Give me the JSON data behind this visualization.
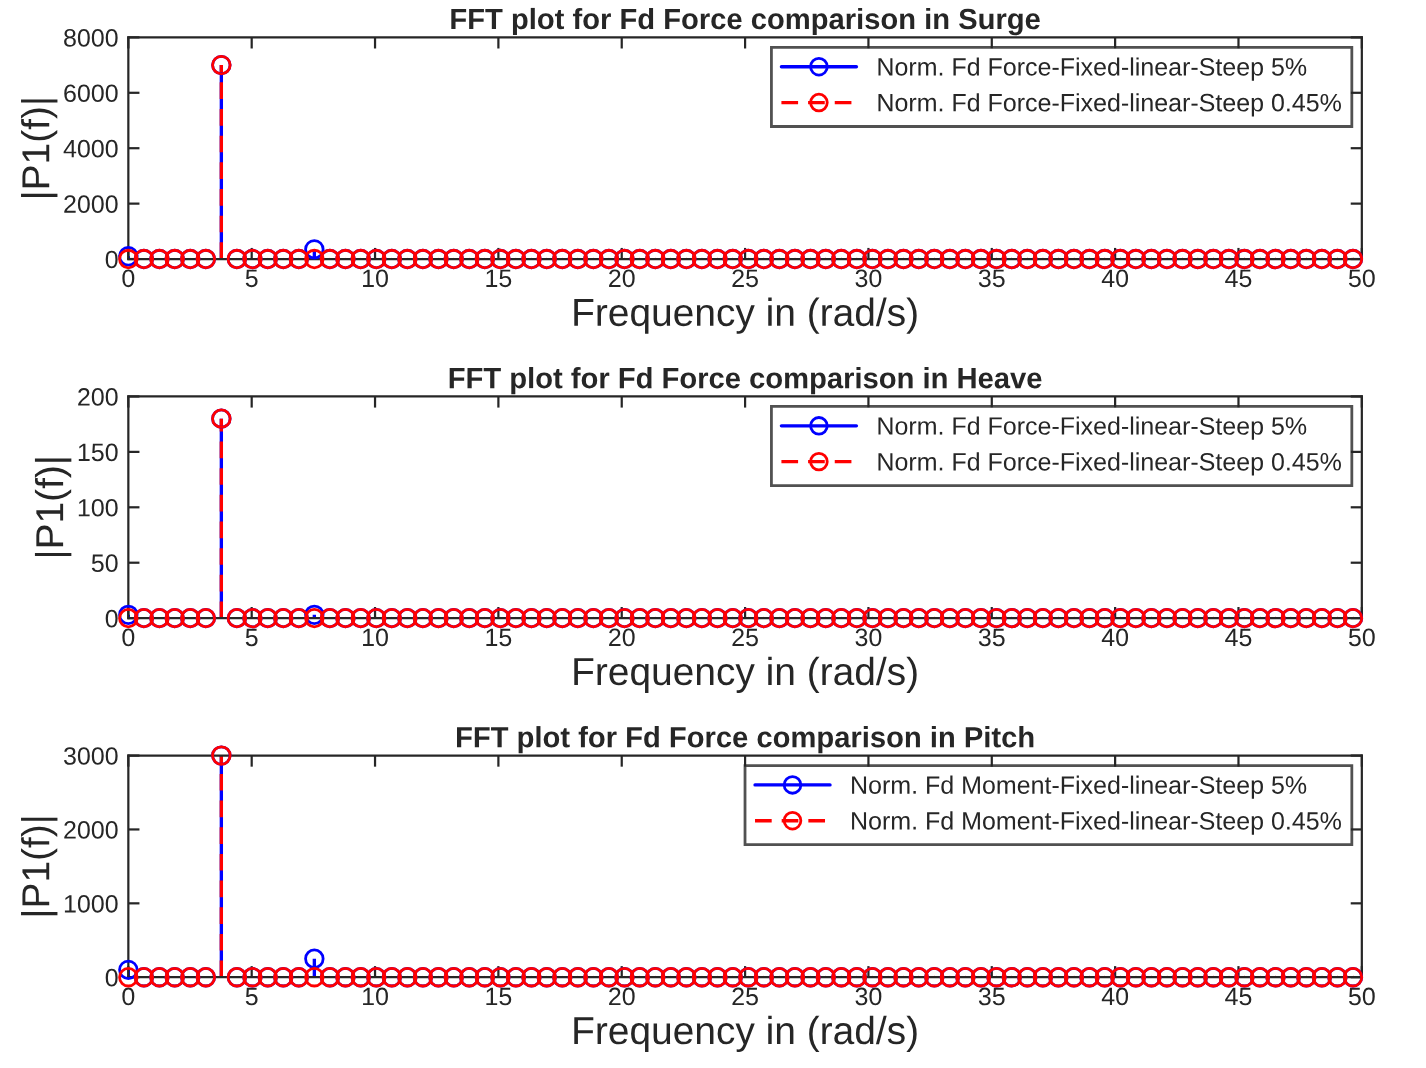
{
  "chart_data": [
    {
      "type": "lollipop",
      "title": "FFT plot for Fd Force comparison in Surge",
      "xlabel": "Frequency in (rad/s)",
      "ylabel": "|P1(f)|",
      "marker": "circle",
      "legend": "top right",
      "grid": false,
      "xlim": [
        0,
        50
      ],
      "xticks": [
        0,
        5,
        10,
        15,
        20,
        25,
        30,
        35,
        40,
        45,
        50
      ],
      "ylim": [
        0,
        8000
      ],
      "yticks": [
        0,
        2000,
        4000,
        6000,
        8000
      ],
      "x": [
        0,
        0.63,
        1.26,
        1.88,
        2.51,
        3.14,
        3.77,
        4.4,
        5.03,
        5.65,
        6.28,
        6.91,
        7.54,
        8.17,
        8.8,
        9.42,
        10.05,
        10.68,
        11.31,
        11.94,
        12.57,
        13.19,
        13.82,
        14.45,
        15.08,
        15.71,
        16.34,
        16.96,
        17.59,
        18.22,
        18.85,
        19.48,
        20.11,
        20.73,
        21.36,
        21.99,
        22.62,
        23.25,
        23.88,
        24.5,
        25.13,
        25.76,
        26.39,
        27.02,
        27.65,
        28.27,
        28.9,
        29.53,
        30.16,
        30.79,
        31.42,
        32.04,
        32.67,
        33.3,
        33.93,
        34.56,
        35.19,
        35.81,
        36.44,
        37.07,
        37.7,
        38.33,
        38.96,
        39.58,
        40.21,
        40.84,
        41.47,
        42.1,
        42.73,
        43.35,
        43.98,
        44.61,
        45.24,
        45.87,
        46.5,
        47.12,
        47.75,
        48.38,
        49.01,
        49.64
      ],
      "series": [
        {
          "name": "Norm. Fd Force-Fixed-linear-Steep 5%",
          "color": "#0000ff",
          "line_style": "solid",
          "values": [
            100,
            0,
            0,
            0,
            0,
            0,
            7000,
            0,
            0,
            0,
            0,
            0,
            350,
            0,
            0,
            0,
            0,
            0,
            0,
            0,
            0,
            0,
            0,
            0,
            0,
            0,
            0,
            0,
            0,
            0,
            0,
            0,
            0,
            0,
            0,
            0,
            0,
            0,
            0,
            0,
            0,
            0,
            0,
            0,
            0,
            0,
            0,
            0,
            0,
            0,
            0,
            0,
            0,
            0,
            0,
            0,
            0,
            0,
            0,
            0,
            0,
            0,
            0,
            0,
            0,
            0,
            0,
            0,
            0,
            0,
            0,
            0,
            0,
            0,
            0,
            0,
            0,
            0,
            0,
            0
          ]
        },
        {
          "name": "Norm. Fd Force-Fixed-linear-Steep 0.45%",
          "color": "#ff0000",
          "line_style": "dashed",
          "values": [
            0,
            0,
            0,
            0,
            0,
            0,
            7000,
            0,
            0,
            0,
            0,
            0,
            0,
            0,
            0,
            0,
            0,
            0,
            0,
            0,
            0,
            0,
            0,
            0,
            0,
            0,
            0,
            0,
            0,
            0,
            0,
            0,
            0,
            0,
            0,
            0,
            0,
            0,
            0,
            0,
            0,
            0,
            0,
            0,
            0,
            0,
            0,
            0,
            0,
            0,
            0,
            0,
            0,
            0,
            0,
            0,
            0,
            0,
            0,
            0,
            0,
            0,
            0,
            0,
            0,
            0,
            0,
            0,
            0,
            0,
            0,
            0,
            0,
            0,
            0,
            0,
            0,
            0,
            0,
            0
          ]
        }
      ]
    },
    {
      "type": "lollipop",
      "title": "FFT plot for Fd Force comparison in Heave",
      "xlabel": "Frequency in (rad/s)",
      "ylabel": "|P1(f)|",
      "marker": "circle",
      "legend": "top right",
      "grid": false,
      "xlim": [
        0,
        50
      ],
      "xticks": [
        0,
        5,
        10,
        15,
        20,
        25,
        30,
        35,
        40,
        45,
        50
      ],
      "ylim": [
        0,
        200
      ],
      "yticks": [
        0,
        50,
        100,
        150,
        200
      ],
      "x": [
        0,
        0.63,
        1.26,
        1.88,
        2.51,
        3.14,
        3.77,
        4.4,
        5.03,
        5.65,
        6.28,
        6.91,
        7.54,
        8.17,
        8.8,
        9.42,
        10.05,
        10.68,
        11.31,
        11.94,
        12.57,
        13.19,
        13.82,
        14.45,
        15.08,
        15.71,
        16.34,
        16.96,
        17.59,
        18.22,
        18.85,
        19.48,
        20.11,
        20.73,
        21.36,
        21.99,
        22.62,
        23.25,
        23.88,
        24.5,
        25.13,
        25.76,
        26.39,
        27.02,
        27.65,
        28.27,
        28.9,
        29.53,
        30.16,
        30.79,
        31.42,
        32.04,
        32.67,
        33.3,
        33.93,
        34.56,
        35.19,
        35.81,
        36.44,
        37.07,
        37.7,
        38.33,
        38.96,
        39.58,
        40.21,
        40.84,
        41.47,
        42.1,
        42.73,
        43.35,
        43.98,
        44.61,
        45.24,
        45.87,
        46.5,
        47.12,
        47.75,
        48.38,
        49.01,
        49.64
      ],
      "series": [
        {
          "name": "Norm. Fd Force-Fixed-linear-Steep 5%",
          "color": "#0000ff",
          "line_style": "solid",
          "values": [
            3,
            0,
            0,
            0,
            0,
            0,
            180,
            0,
            0,
            0,
            0,
            0,
            3,
            0,
            0,
            0,
            0,
            0,
            0,
            0,
            0,
            0,
            0,
            0,
            0,
            0,
            0,
            0,
            0,
            0,
            0,
            0,
            0,
            0,
            0,
            0,
            0,
            0,
            0,
            0,
            0,
            0,
            0,
            0,
            0,
            0,
            0,
            0,
            0,
            0,
            0,
            0,
            0,
            0,
            0,
            0,
            0,
            0,
            0,
            0,
            0,
            0,
            0,
            0,
            0,
            0,
            0,
            0,
            0,
            0,
            0,
            0,
            0,
            0,
            0,
            0,
            0,
            0,
            0,
            0
          ]
        },
        {
          "name": "Norm. Fd Force-Fixed-linear-Steep 0.45%",
          "color": "#ff0000",
          "line_style": "dashed",
          "values": [
            0,
            0,
            0,
            0,
            0,
            0,
            180,
            0,
            0,
            0,
            0,
            0,
            0,
            0,
            0,
            0,
            0,
            0,
            0,
            0,
            0,
            0,
            0,
            0,
            0,
            0,
            0,
            0,
            0,
            0,
            0,
            0,
            0,
            0,
            0,
            0,
            0,
            0,
            0,
            0,
            0,
            0,
            0,
            0,
            0,
            0,
            0,
            0,
            0,
            0,
            0,
            0,
            0,
            0,
            0,
            0,
            0,
            0,
            0,
            0,
            0,
            0,
            0,
            0,
            0,
            0,
            0,
            0,
            0,
            0,
            0,
            0,
            0,
            0,
            0,
            0,
            0,
            0,
            0,
            0
          ]
        }
      ]
    },
    {
      "type": "lollipop",
      "title": "FFT plot for Fd Force comparison in Pitch",
      "xlabel": "Frequency in (rad/s)",
      "ylabel": "|P1(f)|",
      "marker": "circle",
      "legend": "top right",
      "grid": false,
      "xlim": [
        0,
        50
      ],
      "xticks": [
        0,
        5,
        10,
        15,
        20,
        25,
        30,
        35,
        40,
        45,
        50
      ],
      "ylim": [
        0,
        3000
      ],
      "yticks": [
        0,
        1000,
        2000,
        3000
      ],
      "x": [
        0,
        0.63,
        1.26,
        1.88,
        2.51,
        3.14,
        3.77,
        4.4,
        5.03,
        5.65,
        6.28,
        6.91,
        7.54,
        8.17,
        8.8,
        9.42,
        10.05,
        10.68,
        11.31,
        11.94,
        12.57,
        13.19,
        13.82,
        14.45,
        15.08,
        15.71,
        16.34,
        16.96,
        17.59,
        18.22,
        18.85,
        19.48,
        20.11,
        20.73,
        21.36,
        21.99,
        22.62,
        23.25,
        23.88,
        24.5,
        25.13,
        25.76,
        26.39,
        27.02,
        27.65,
        28.27,
        28.9,
        29.53,
        30.16,
        30.79,
        31.42,
        32.04,
        32.67,
        33.3,
        33.93,
        34.56,
        35.19,
        35.81,
        36.44,
        37.07,
        37.7,
        38.33,
        38.96,
        39.58,
        40.21,
        40.84,
        41.47,
        42.1,
        42.73,
        43.35,
        43.98,
        44.61,
        45.24,
        45.87,
        46.5,
        47.12,
        47.75,
        48.38,
        49.01,
        49.64
      ],
      "series": [
        {
          "name": "Norm. Fd Moment-Fixed-linear-Steep 5%",
          "color": "#0000ff",
          "line_style": "solid",
          "values": [
            100,
            0,
            0,
            0,
            0,
            0,
            3000,
            0,
            0,
            0,
            0,
            0,
            250,
            0,
            0,
            0,
            0,
            0,
            0,
            0,
            0,
            0,
            0,
            0,
            0,
            0,
            0,
            0,
            0,
            0,
            0,
            0,
            0,
            0,
            0,
            0,
            0,
            0,
            0,
            0,
            0,
            0,
            0,
            0,
            0,
            0,
            0,
            0,
            0,
            0,
            0,
            0,
            0,
            0,
            0,
            0,
            0,
            0,
            0,
            0,
            0,
            0,
            0,
            0,
            0,
            0,
            0,
            0,
            0,
            0,
            0,
            0,
            0,
            0,
            0,
            0,
            0,
            0,
            0,
            0
          ]
        },
        {
          "name": "Norm. Fd Moment-Fixed-linear-Steep 0.45%",
          "color": "#ff0000",
          "line_style": "dashed",
          "values": [
            0,
            0,
            0,
            0,
            0,
            0,
            3000,
            0,
            0,
            0,
            0,
            0,
            0,
            0,
            0,
            0,
            0,
            0,
            0,
            0,
            0,
            0,
            0,
            0,
            0,
            0,
            0,
            0,
            0,
            0,
            0,
            0,
            0,
            0,
            0,
            0,
            0,
            0,
            0,
            0,
            0,
            0,
            0,
            0,
            0,
            0,
            0,
            0,
            0,
            0,
            0,
            0,
            0,
            0,
            0,
            0,
            0,
            0,
            0,
            0,
            0,
            0,
            0,
            0,
            0,
            0,
            0,
            0,
            0,
            0,
            0,
            0,
            0,
            0,
            0,
            0,
            0,
            0,
            0,
            0
          ]
        }
      ]
    }
  ]
}
